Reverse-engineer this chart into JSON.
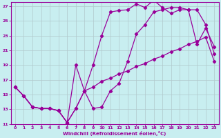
{
  "xlabel": "Windchill (Refroidissement éolien,°C)",
  "bg_color": "#c8eef0",
  "line_color": "#990099",
  "grid_color": "#b0c8cc",
  "xlim": [
    -0.5,
    23.5
  ],
  "ylim": [
    11,
    27.5
  ],
  "xticks": [
    0,
    1,
    2,
    3,
    4,
    5,
    6,
    7,
    8,
    9,
    10,
    11,
    12,
    13,
    14,
    15,
    16,
    17,
    18,
    19,
    20,
    21,
    22,
    23
  ],
  "yticks": [
    11,
    13,
    15,
    17,
    19,
    21,
    23,
    25,
    27
  ],
  "line1_x": [
    0,
    1,
    2,
    3,
    4,
    5,
    6,
    7,
    8,
    9,
    10,
    11,
    12,
    13,
    14,
    15,
    16,
    17,
    18,
    19,
    20,
    21,
    22,
    23
  ],
  "line1_y": [
    16,
    14.8,
    13.3,
    13.1,
    13.1,
    12.8,
    11.2,
    13.1,
    15.5,
    19.0,
    23.0,
    26.2,
    26.4,
    26.5,
    27.3,
    26.8,
    27.8,
    26.8,
    26.0,
    26.5,
    26.5,
    21.8,
    24.0,
    21.5
  ],
  "line2_x": [
    0,
    1,
    2,
    3,
    4,
    5,
    6,
    7,
    8,
    9,
    10,
    11,
    12,
    13,
    14,
    15,
    16,
    17,
    18,
    19,
    20,
    21,
    22,
    23
  ],
  "line2_y": [
    16,
    14.8,
    13.3,
    13.1,
    13.1,
    12.8,
    11.2,
    19.0,
    15.5,
    13.1,
    13.3,
    15.5,
    16.5,
    19.5,
    23.2,
    24.5,
    26.2,
    26.5,
    26.8,
    26.8,
    26.5,
    26.5,
    24.5,
    20.5
  ],
  "line3_x": [
    0,
    1,
    2,
    3,
    4,
    5,
    6,
    7,
    8,
    9,
    10,
    11,
    12,
    13,
    14,
    15,
    16,
    17,
    18,
    19,
    20,
    21,
    22,
    23
  ],
  "line3_y": [
    16,
    14.8,
    13.3,
    13.1,
    13.1,
    12.8,
    11.2,
    13.1,
    15.5,
    16.0,
    16.8,
    17.2,
    17.8,
    18.2,
    18.8,
    19.2,
    19.8,
    20.2,
    20.8,
    21.2,
    21.8,
    22.2,
    22.8,
    19.5
  ]
}
